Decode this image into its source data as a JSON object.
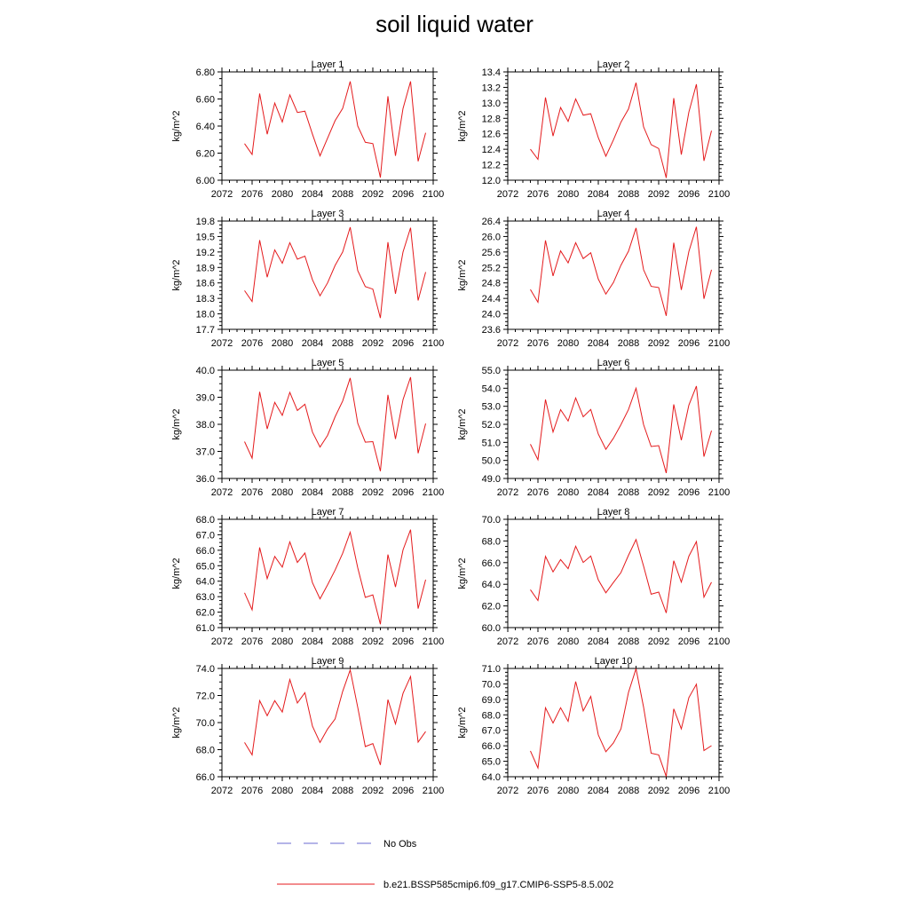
{
  "title": "soil liquid water",
  "legend": [
    {
      "label": "No Obs",
      "color": "#6a6ad0",
      "dash": "dashed"
    },
    {
      "label": "b.e21.BSSP585cmip6.f09_g17.CMIP6-SSP5-8.5.002",
      "color": "#e41a1c",
      "dash": "solid"
    }
  ],
  "chart_data": [
    {
      "type": "line",
      "title": "Layer 1",
      "ylabel": "kg/m^2",
      "xlim": [
        2072,
        2100
      ],
      "ylim": [
        6.0,
        6.8
      ],
      "xticks": [
        "2072",
        "2076",
        "2080",
        "2084",
        "2088",
        "2092",
        "2096",
        "2100"
      ],
      "yticks": [
        "6.00",
        "6.20",
        "6.40",
        "6.60",
        "6.80"
      ],
      "ytick_values": [
        6.0,
        6.2,
        6.4,
        6.6,
        6.8
      ],
      "x": [
        2075,
        2076,
        2077,
        2078,
        2079,
        2080,
        2081,
        2082,
        2083,
        2084,
        2085,
        2086,
        2087,
        2088,
        2089,
        2090,
        2091,
        2092,
        2093,
        2094,
        2095,
        2096,
        2097,
        2098,
        2099
      ],
      "series": [
        {
          "values": [
            6.27,
            6.19,
            6.64,
            6.34,
            6.57,
            6.43,
            6.63,
            6.5,
            6.51,
            6.34,
            6.18,
            6.31,
            6.44,
            6.53,
            6.73,
            6.4,
            6.28,
            6.27,
            6.02,
            6.62,
            6.18,
            6.53,
            6.73,
            6.14,
            6.35
          ],
          "color": "#e41a1c"
        }
      ]
    },
    {
      "type": "line",
      "title": "Layer 2",
      "ylabel": "kg/m^2",
      "xlim": [
        2072,
        2100
      ],
      "ylim": [
        12.0,
        13.4
      ],
      "xticks": [
        "2072",
        "2076",
        "2080",
        "2084",
        "2088",
        "2092",
        "2096",
        "2100"
      ],
      "yticks": [
        "12.0",
        "12.2",
        "12.4",
        "12.6",
        "12.8",
        "13.0",
        "13.2",
        "13.4"
      ],
      "ytick_values": [
        12.0,
        12.2,
        12.4,
        12.6,
        12.8,
        13.0,
        13.2,
        13.4
      ],
      "x": [
        2075,
        2076,
        2077,
        2078,
        2079,
        2080,
        2081,
        2082,
        2083,
        2084,
        2085,
        2086,
        2087,
        2088,
        2089,
        2090,
        2091,
        2092,
        2093,
        2094,
        2095,
        2096,
        2097,
        2098,
        2099
      ],
      "series": [
        {
          "values": [
            12.4,
            12.27,
            13.07,
            12.57,
            12.94,
            12.76,
            13.05,
            12.84,
            12.86,
            12.55,
            12.31,
            12.52,
            12.75,
            12.92,
            13.26,
            12.69,
            12.46,
            12.41,
            12.03,
            13.06,
            12.33,
            12.88,
            13.24,
            12.25,
            12.64
          ],
          "color": "#e41a1c"
        }
      ]
    },
    {
      "type": "line",
      "title": "Layer 3",
      "ylabel": "kg/m^2",
      "xlim": [
        2072,
        2100
      ],
      "ylim": [
        17.7,
        19.8
      ],
      "xticks": [
        "2072",
        "2076",
        "2080",
        "2084",
        "2088",
        "2092",
        "2096",
        "2100"
      ],
      "yticks": [
        "17.7",
        "18.0",
        "18.3",
        "18.6",
        "18.9",
        "19.2",
        "19.5",
        "19.8"
      ],
      "ytick_values": [
        17.7,
        18.0,
        18.3,
        18.6,
        18.9,
        19.2,
        19.5,
        19.8
      ],
      "x": [
        2075,
        2076,
        2077,
        2078,
        2079,
        2080,
        2081,
        2082,
        2083,
        2084,
        2085,
        2086,
        2087,
        2088,
        2089,
        2090,
        2091,
        2092,
        2093,
        2094,
        2095,
        2096,
        2097,
        2098,
        2099
      ],
      "series": [
        {
          "values": [
            18.45,
            18.24,
            19.43,
            18.71,
            19.24,
            18.98,
            19.38,
            19.06,
            19.12,
            18.66,
            18.35,
            18.6,
            18.94,
            19.2,
            19.68,
            18.84,
            18.53,
            18.48,
            17.92,
            19.39,
            18.39,
            19.2,
            19.67,
            18.26,
            18.81
          ],
          "color": "#e41a1c"
        }
      ]
    },
    {
      "type": "line",
      "title": "Layer 4",
      "ylabel": "kg/m^2",
      "xlim": [
        2072,
        2100
      ],
      "ylim": [
        23.6,
        26.4
      ],
      "xticks": [
        "2072",
        "2076",
        "2080",
        "2084",
        "2088",
        "2092",
        "2096",
        "2100"
      ],
      "yticks": [
        "23.6",
        "24.0",
        "24.4",
        "24.8",
        "25.2",
        "25.6",
        "26.0",
        "26.4"
      ],
      "ytick_values": [
        23.6,
        24.0,
        24.4,
        24.8,
        25.2,
        25.6,
        26.0,
        26.4
      ],
      "x": [
        2075,
        2076,
        2077,
        2078,
        2079,
        2080,
        2081,
        2082,
        2083,
        2084,
        2085,
        2086,
        2087,
        2088,
        2089,
        2090,
        2091,
        2092,
        2093,
        2094,
        2095,
        2096,
        2097,
        2098,
        2099
      ],
      "series": [
        {
          "values": [
            24.63,
            24.3,
            25.9,
            24.98,
            25.63,
            25.32,
            25.84,
            25.43,
            25.58,
            24.9,
            24.51,
            24.81,
            25.26,
            25.62,
            26.22,
            25.14,
            24.71,
            24.68,
            23.95,
            25.84,
            24.62,
            25.61,
            26.25,
            24.39,
            25.14
          ],
          "color": "#e41a1c"
        }
      ]
    },
    {
      "type": "line",
      "title": "Layer 5",
      "ylabel": "kg/m^2",
      "xlim": [
        2072,
        2100
      ],
      "ylim": [
        36.0,
        40.0
      ],
      "xticks": [
        "2072",
        "2076",
        "2080",
        "2084",
        "2088",
        "2092",
        "2096",
        "2100"
      ],
      "yticks": [
        "36.0",
        "37.0",
        "38.0",
        "39.0",
        "40.0"
      ],
      "ytick_values": [
        36.0,
        37.0,
        38.0,
        39.0,
        40.0
      ],
      "x": [
        2075,
        2076,
        2077,
        2078,
        2079,
        2080,
        2081,
        2082,
        2083,
        2084,
        2085,
        2086,
        2087,
        2088,
        2089,
        2090,
        2091,
        2092,
        2093,
        2094,
        2095,
        2096,
        2097,
        2098,
        2099
      ],
      "series": [
        {
          "values": [
            37.36,
            36.75,
            39.2,
            37.83,
            38.81,
            38.33,
            39.18,
            38.51,
            38.74,
            37.71,
            37.16,
            37.59,
            38.28,
            38.86,
            39.71,
            38.04,
            37.34,
            37.36,
            36.27,
            39.09,
            37.46,
            38.91,
            39.74,
            36.93,
            38.03
          ],
          "color": "#e41a1c"
        }
      ]
    },
    {
      "type": "line",
      "title": "Layer 6",
      "ylabel": "kg/m^2",
      "xlim": [
        2072,
        2100
      ],
      "ylim": [
        49.0,
        55.0
      ],
      "xticks": [
        "2072",
        "2076",
        "2080",
        "2084",
        "2088",
        "2092",
        "2096",
        "2100"
      ],
      "yticks": [
        "49.0",
        "50.0",
        "51.0",
        "52.0",
        "53.0",
        "54.0",
        "55.0"
      ],
      "ytick_values": [
        49.0,
        50.0,
        51.0,
        52.0,
        53.0,
        54.0,
        55.0
      ],
      "x": [
        2075,
        2076,
        2077,
        2078,
        2079,
        2080,
        2081,
        2082,
        2083,
        2084,
        2085,
        2086,
        2087,
        2088,
        2089,
        2090,
        2091,
        2092,
        2093,
        2094,
        2095,
        2096,
        2097,
        2098,
        2099
      ],
      "series": [
        {
          "values": [
            50.9,
            50.04,
            53.37,
            51.57,
            52.81,
            52.18,
            53.46,
            52.42,
            52.82,
            51.46,
            50.62,
            51.23,
            51.98,
            52.82,
            54.0,
            51.98,
            50.77,
            50.82,
            49.3,
            53.1,
            51.12,
            53.06,
            54.12,
            50.21,
            51.65
          ],
          "color": "#e41a1c"
        }
      ]
    },
    {
      "type": "line",
      "title": "Layer 7",
      "ylabel": "kg/m^2",
      "xlim": [
        2072,
        2100
      ],
      "ylim": [
        61.0,
        68.0
      ],
      "xticks": [
        "2072",
        "2076",
        "2080",
        "2084",
        "2088",
        "2092",
        "2096",
        "2100"
      ],
      "yticks": [
        "61.0",
        "62.0",
        "63.0",
        "64.0",
        "65.0",
        "66.0",
        "67.0",
        "68.0"
      ],
      "ytick_values": [
        61.0,
        62.0,
        63.0,
        64.0,
        65.0,
        66.0,
        67.0,
        68.0
      ],
      "x": [
        2075,
        2076,
        2077,
        2078,
        2079,
        2080,
        2081,
        2082,
        2083,
        2084,
        2085,
        2086,
        2087,
        2088,
        2089,
        2090,
        2091,
        2092,
        2093,
        2094,
        2095,
        2096,
        2097,
        2098,
        2099
      ],
      "series": [
        {
          "values": [
            63.25,
            62.15,
            66.18,
            64.17,
            65.6,
            64.91,
            66.54,
            65.21,
            65.82,
            63.9,
            62.86,
            63.76,
            64.72,
            65.8,
            67.16,
            64.87,
            62.95,
            63.11,
            61.22,
            65.72,
            63.62,
            66.02,
            67.33,
            62.23,
            64.1
          ],
          "color": "#e41a1c"
        }
      ]
    },
    {
      "type": "line",
      "title": "Layer 8",
      "ylabel": "kg/m^2",
      "xlim": [
        2072,
        2100
      ],
      "ylim": [
        60.0,
        70.0
      ],
      "xticks": [
        "2072",
        "2076",
        "2080",
        "2084",
        "2088",
        "2092",
        "2096",
        "2100"
      ],
      "yticks": [
        "60.0",
        "62.0",
        "64.0",
        "66.0",
        "68.0",
        "70.0"
      ],
      "ytick_values": [
        60.0,
        62.0,
        64.0,
        66.0,
        68.0,
        70.0
      ],
      "x": [
        2075,
        2076,
        2077,
        2078,
        2079,
        2080,
        2081,
        2082,
        2083,
        2084,
        2085,
        2086,
        2087,
        2088,
        2089,
        2090,
        2091,
        2092,
        2093,
        2094,
        2095,
        2096,
        2097,
        2098,
        2099
      ],
      "series": [
        {
          "values": [
            63.5,
            62.5,
            66.57,
            65.15,
            66.28,
            65.44,
            67.52,
            66.02,
            66.61,
            64.4,
            63.21,
            64.16,
            65.08,
            66.68,
            68.13,
            65.67,
            63.08,
            63.28,
            61.35,
            66.17,
            64.2,
            66.59,
            67.94,
            62.81,
            64.19
          ],
          "color": "#e41a1c"
        }
      ]
    },
    {
      "type": "line",
      "title": "Layer 9",
      "ylabel": "kg/m^2",
      "xlim": [
        2072,
        2100
      ],
      "ylim": [
        66.0,
        74.0
      ],
      "xticks": [
        "2072",
        "2076",
        "2080",
        "2084",
        "2088",
        "2092",
        "2096",
        "2100"
      ],
      "yticks": [
        "66.0",
        "68.0",
        "70.0",
        "72.0",
        "74.0"
      ],
      "ytick_values": [
        66.0,
        68.0,
        70.0,
        72.0,
        74.0
      ],
      "x": [
        2075,
        2076,
        2077,
        2078,
        2079,
        2080,
        2081,
        2082,
        2083,
        2084,
        2085,
        2086,
        2087,
        2088,
        2089,
        2090,
        2091,
        2092,
        2093,
        2094,
        2095,
        2096,
        2097,
        2098,
        2099
      ],
      "series": [
        {
          "values": [
            68.53,
            67.61,
            71.62,
            70.51,
            71.62,
            70.78,
            73.18,
            71.45,
            72.21,
            69.73,
            68.53,
            69.52,
            70.27,
            72.3,
            73.89,
            71.13,
            68.23,
            68.45,
            66.87,
            71.69,
            69.9,
            72.16,
            73.4,
            68.56,
            69.34
          ],
          "color": "#e41a1c"
        }
      ]
    },
    {
      "type": "line",
      "title": "Layer 10",
      "ylabel": "kg/m^2",
      "xlim": [
        2072,
        2100
      ],
      "ylim": [
        64.0,
        71.0
      ],
      "xticks": [
        "2072",
        "2076",
        "2080",
        "2084",
        "2088",
        "2092",
        "2096",
        "2100"
      ],
      "yticks": [
        "64.0",
        "65.0",
        "66.0",
        "67.0",
        "68.0",
        "69.0",
        "70.0",
        "71.0"
      ],
      "ytick_values": [
        64.0,
        65.0,
        66.0,
        67.0,
        68.0,
        69.0,
        70.0,
        71.0
      ],
      "x": [
        2075,
        2076,
        2077,
        2078,
        2079,
        2080,
        2081,
        2082,
        2083,
        2084,
        2085,
        2086,
        2087,
        2088,
        2089,
        2090,
        2091,
        2092,
        2093,
        2094,
        2095,
        2096,
        2097,
        2098,
        2099
      ],
      "series": [
        {
          "values": [
            65.67,
            64.57,
            68.46,
            67.47,
            68.46,
            67.58,
            70.15,
            68.25,
            69.19,
            66.7,
            65.62,
            66.18,
            67.09,
            69.45,
            70.98,
            68.5,
            65.52,
            65.41,
            64.02,
            68.39,
            67.09,
            69.11,
            69.98,
            65.69,
            66.01
          ],
          "color": "#e41a1c"
        }
      ]
    }
  ]
}
